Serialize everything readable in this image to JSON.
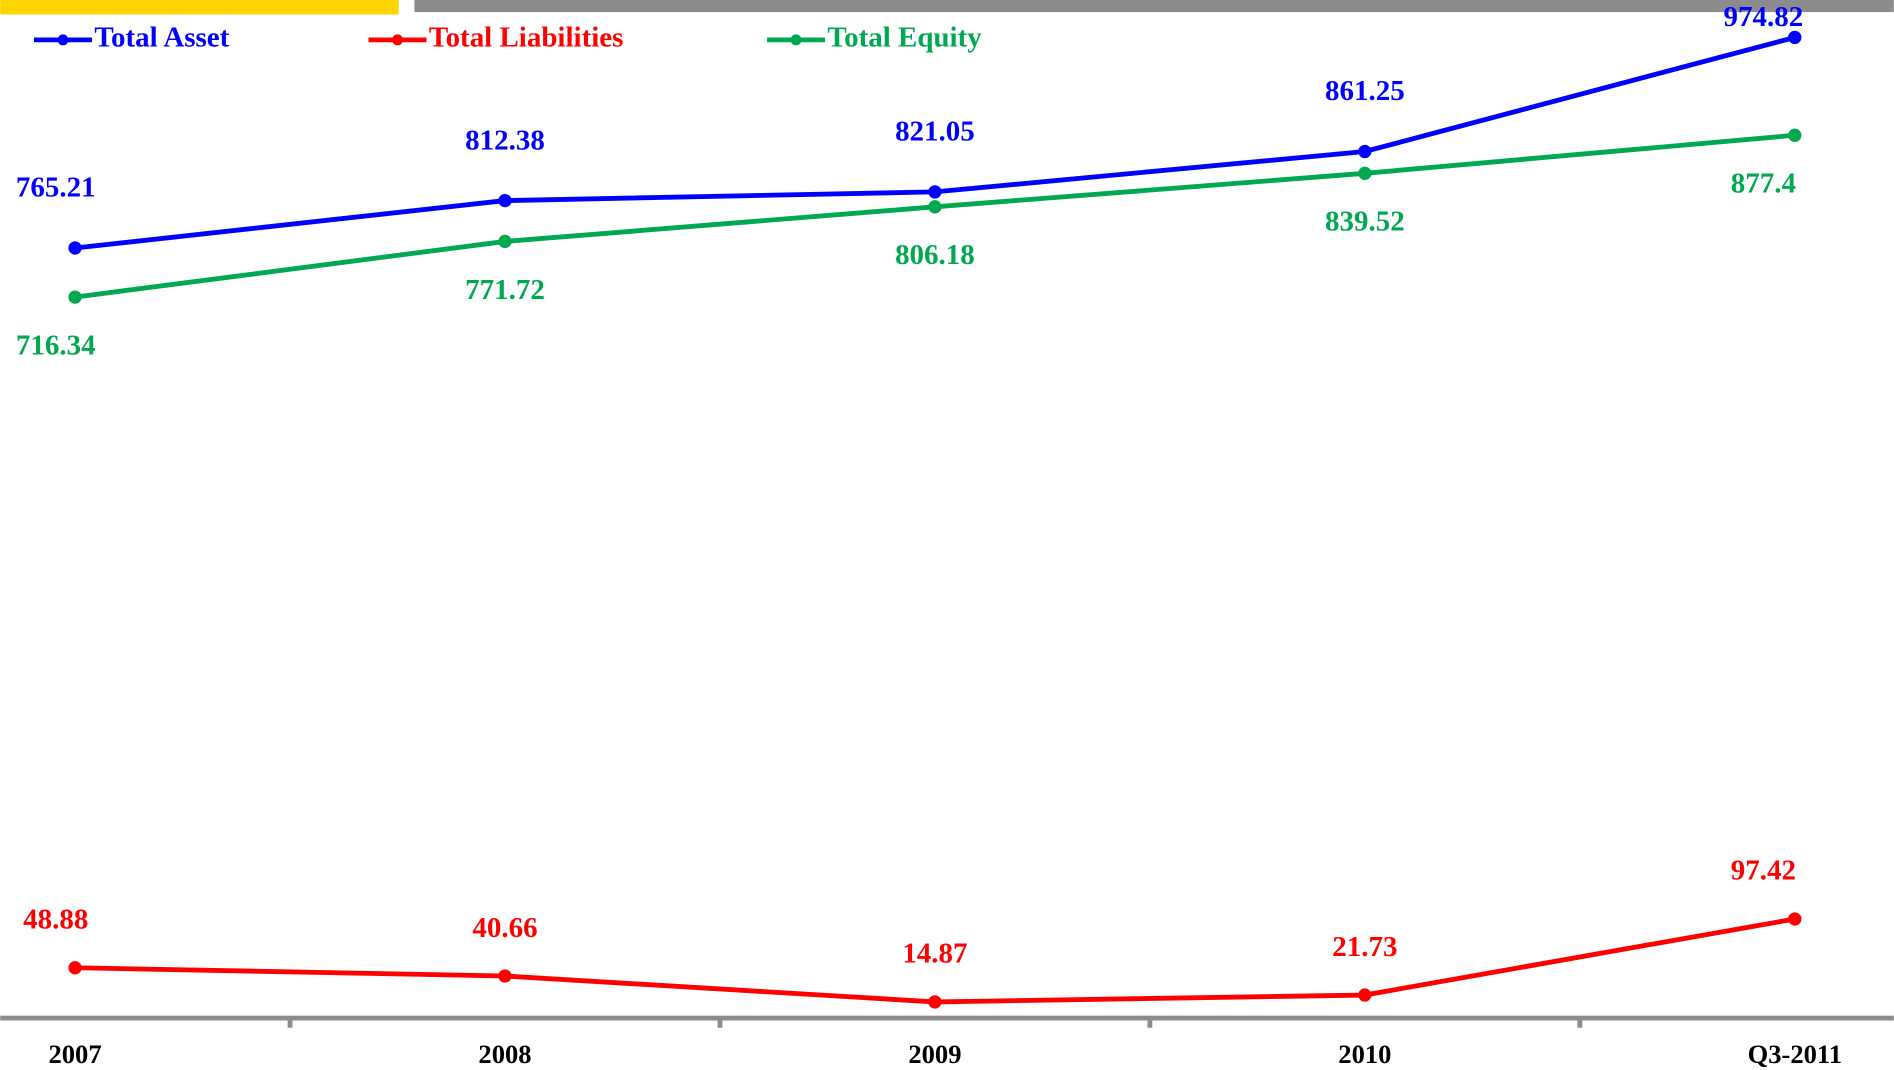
{
  "chart_data": {
    "type": "line",
    "categories": [
      "2007",
      "2008",
      "2009",
      "2010",
      "Q3-2011"
    ],
    "series": [
      {
        "name": "Total Asset",
        "color": "#0000ff",
        "values": [
          765.21,
          812.38,
          821.05,
          861.25,
          974.82
        ]
      },
      {
        "name": "Total Liabilities",
        "color": "#ff0000",
        "values": [
          48.88,
          40.66,
          14.87,
          21.73,
          97.42
        ]
      },
      {
        "name": "Total Equity",
        "color": "#00a84f",
        "values": [
          716.34,
          771.72,
          806.18,
          839.52,
          877.4
        ]
      }
    ],
    "ylim": [
      0,
      1000
    ],
    "legend": "top"
  }
}
